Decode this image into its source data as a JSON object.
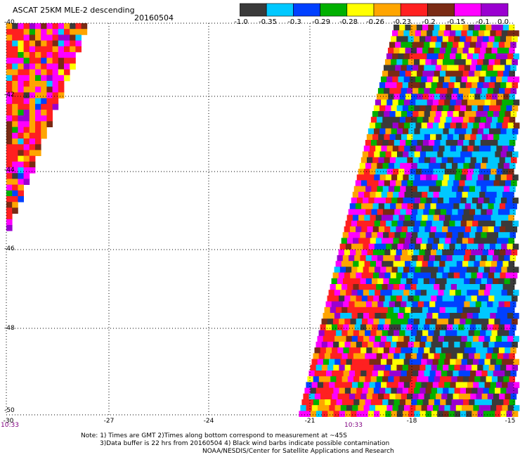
{
  "header": {
    "title": "ASCAT 25KM MLE-2 descending",
    "date": "20160504"
  },
  "colorbar": {
    "colors": [
      "#3a3a3a",
      "#00c8ff",
      "#0040ff",
      "#00b000",
      "#ffff00",
      "#ffa500",
      "#ff2020",
      "#7a2a14",
      "#ff00ff",
      "#9a00d0"
    ],
    "labels": [
      "-1.0",
      "-0.35",
      "-0.3",
      "-0.29",
      "-0.28",
      "-0.26",
      "-0.23",
      "-0.2",
      "-0.15",
      "-0.1",
      "0.0"
    ]
  },
  "map": {
    "lat_labels": [
      "-40",
      "-42",
      "-44",
      "-46",
      "-48",
      "-50"
    ],
    "lon_labels": [
      "-30",
      "-27",
      "-24",
      "-21",
      "-18",
      "-15"
    ],
    "time_labels": [
      "10:33",
      "10:33"
    ]
  },
  "notes": {
    "line1": "Note: 1) Times are GMT 2)Times along bottom correspond to measurement at ~45S",
    "line2": "3)Data buffer is 22 hrs from 20160504 4) Black wind barbs indicate possible contamination",
    "line3": "NOAA/NESDIS/Center for Satellite Applications and Research"
  }
}
